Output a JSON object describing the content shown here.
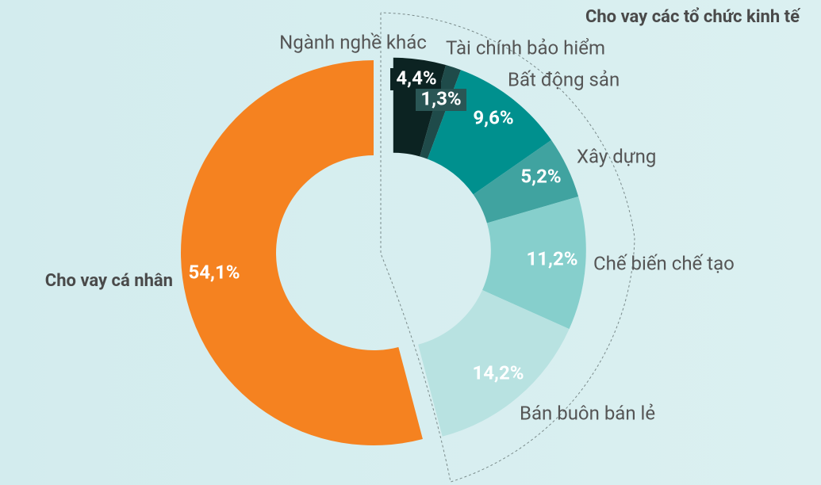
{
  "chart_data": {
    "type": "donut",
    "group_label": "Cho vay các tổ chức kinh tế",
    "categories": [
      "Ngành nghề khác",
      "Tài chính bảo hiểm",
      "Bất động sản",
      "Xây dựng",
      "Chế biến chế tạo",
      "Bán buôn bán lẻ",
      "Cho vay cá nhân"
    ],
    "values": [
      4.4,
      1.3,
      9.6,
      5.2,
      11.2,
      14.2,
      54.1
    ],
    "value_labels": [
      "4,4%",
      "1,3%",
      "9,6%",
      "5,2%",
      "11,2%",
      "14,2%",
      "54,1%"
    ],
    "colors": [
      "#0c2322",
      "#1f4b4a",
      "#00908e",
      "#40a3a0",
      "#86cfcc",
      "#b8e2e1",
      "#f58220"
    ]
  }
}
